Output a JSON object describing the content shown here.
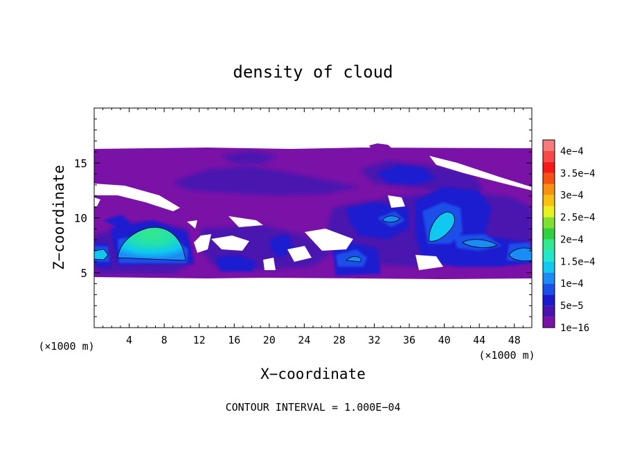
{
  "chart_data": {
    "type": "heatmap",
    "title": "density of cloud",
    "xlabel": "X−coordinate",
    "ylabel": "Z−coordinate",
    "x_unit_left": "(×1000 m)",
    "x_unit_right": "(×1000 m)",
    "xlim": [
      0,
      50
    ],
    "ylim": [
      0,
      20
    ],
    "x_ticks": [
      4,
      8,
      12,
      16,
      20,
      24,
      28,
      32,
      36,
      40,
      44,
      48
    ],
    "x_tick_labels": [
      "4",
      "8",
      "12",
      "16",
      "20",
      "24",
      "28",
      "32",
      "36",
      "40",
      "44",
      "48"
    ],
    "y_ticks": [
      5,
      10,
      15
    ],
    "y_tick_labels": [
      "5",
      "10",
      "15"
    ],
    "colorbar_levels": [
      {
        "label": "1e−16",
        "color": "#7a12a8"
      },
      {
        "label": "",
        "color": "#4a12b0"
      },
      {
        "label": "5e−5",
        "color": "#1a1ad0"
      },
      {
        "label": "",
        "color": "#1a50ea"
      },
      {
        "label": "1e−4",
        "color": "#1a8cf5"
      },
      {
        "label": "",
        "color": "#10c8f0"
      },
      {
        "label": "1.5e−4",
        "color": "#20e8c8"
      },
      {
        "label": "",
        "color": "#30e890"
      },
      {
        "label": "2e−4",
        "color": "#30d040"
      },
      {
        "label": "",
        "color": "#80e030"
      },
      {
        "label": "2.5e−4",
        "color": "#e8f020"
      },
      {
        "label": "",
        "color": "#f8c010"
      },
      {
        "label": "3e−4",
        "color": "#f89010"
      },
      {
        "label": "",
        "color": "#f85010"
      },
      {
        "label": "3.5e−4",
        "color": "#f81818"
      },
      {
        "label": "",
        "color": "#f84848"
      },
      {
        "label": "4e−4",
        "color": "#f87a7a"
      }
    ],
    "cloud_layer": {
      "x_range": [
        0,
        50
      ],
      "z_range": [
        4.5,
        16.3
      ],
      "base_value": "1e−16"
    },
    "cloud_cores": [
      {
        "x_range": [
          2.5,
          10.5
        ],
        "z_range": [
          6.3,
          9.2
        ],
        "max_value": 0.00018
      },
      {
        "x_range": [
          0,
          1.3
        ],
        "z_range": [
          6.3,
          7.1
        ],
        "max_value": 0.00011
      },
      {
        "x_range": [
          27.5,
          31.5
        ],
        "z_range": [
          5.8,
          6.6
        ],
        "max_value": 0.0001
      },
      {
        "x_range": [
          32.5,
          35.5
        ],
        "z_range": [
          9.5,
          10.3
        ],
        "max_value": 0.00011
      },
      {
        "x_range": [
          38.5,
          41.5
        ],
        "z_range": [
          7.6,
          10.6
        ],
        "max_value": 0.00013
      },
      {
        "x_range": [
          42,
          46
        ],
        "z_range": [
          7.3,
          8.0
        ],
        "max_value": 0.00011
      },
      {
        "x_range": [
          47,
          50
        ],
        "z_range": [
          6.3,
          7.3
        ],
        "max_value": 0.00011
      }
    ],
    "grid": false,
    "legend": "colorbar right",
    "footer": "CONTOUR INTERVAL = 1.000E−04"
  }
}
